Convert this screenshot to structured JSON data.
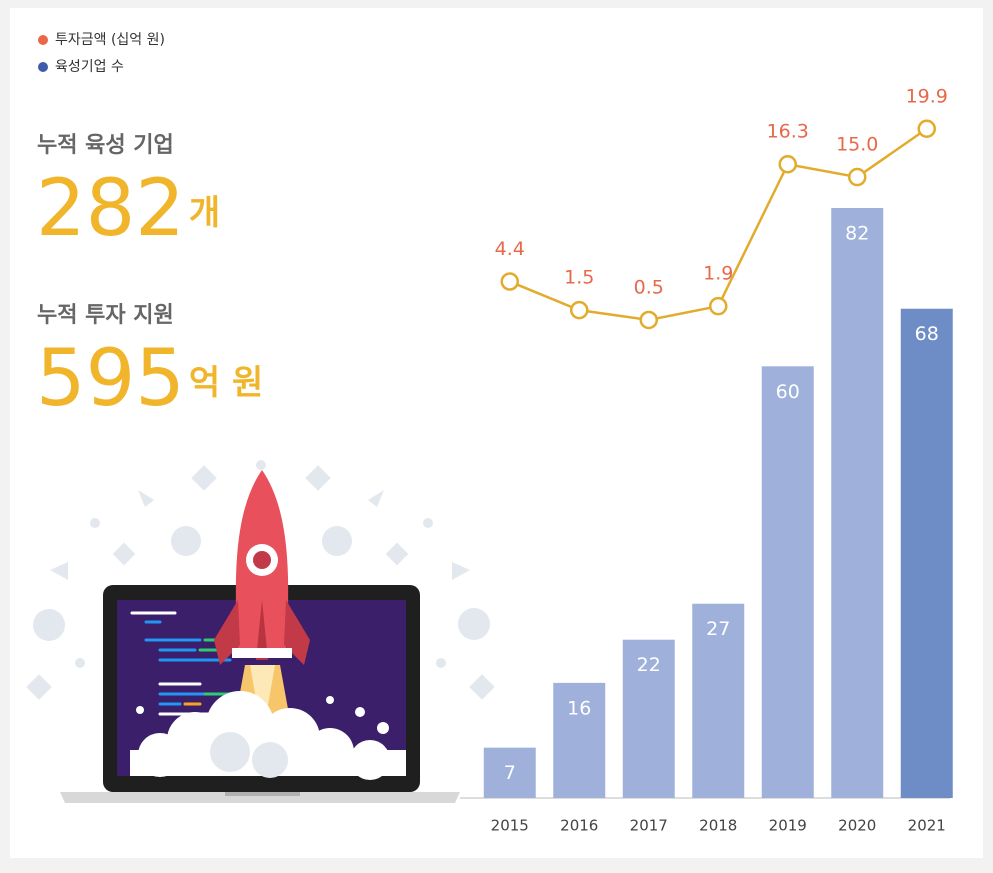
{
  "chart_data": {
    "type": "bar",
    "categories": [
      "2015",
      "2016",
      "2017",
      "2018",
      "2019",
      "2020",
      "2021"
    ],
    "stats": [
      {
        "label": "누적 육성 기업",
        "value": 282,
        "unit": "개"
      },
      {
        "label": "누적 투자 지원",
        "value": 595,
        "unit": "억 원"
      }
    ],
    "series": [
      {
        "name": "투자금액 (십억 원)",
        "type": "line",
        "axis": "y2",
        "color": "#e8684a",
        "line_color": "#e2ab2c",
        "values": [
          4.4,
          1.5,
          0.5,
          1.9,
          16.3,
          15.0,
          19.9
        ],
        "value_labels": [
          "4.4",
          "1.5",
          "0.5",
          "1.9",
          "16.3",
          "15.0",
          "19.9"
        ]
      },
      {
        "name": "육성기업 수",
        "type": "bar",
        "color": "#3d5ba9",
        "bar_colors": [
          "#9fb1db",
          "#9fb1db",
          "#9fb1db",
          "#9fb1db",
          "#9fb1db",
          "#9fb1db",
          "#6e8cc6"
        ],
        "values": [
          7,
          16,
          22,
          27,
          60,
          82,
          68
        ]
      }
    ],
    "ylim": [
      0,
      100
    ],
    "y2lim": [
      -48,
      25
    ]
  }
}
